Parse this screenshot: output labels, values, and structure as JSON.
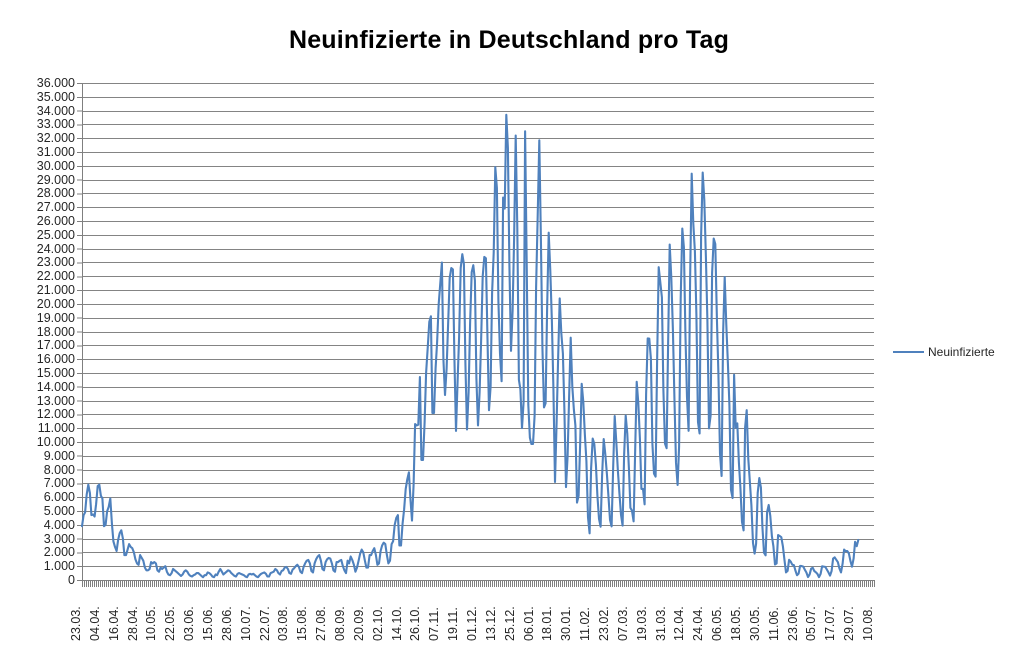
{
  "title": "Neuinfizierte in Deutschland pro Tag",
  "legend": {
    "label": "Neuinfizierte"
  },
  "colors": {
    "series": "#4F81BD",
    "gridline": "#848484",
    "axis": "#7f7f7f",
    "labels": "#262626",
    "title": "#000000",
    "background": "#FFFFFF"
  },
  "chart_data": {
    "type": "line",
    "title": "Neuinfizierte in Deutschland pro Tag",
    "series_name": "Neuinfizierte",
    "ylim": [
      0,
      36000
    ],
    "y_tick_step": 1000,
    "grid": "horizontal",
    "legend_position": "right",
    "y_tick_labels": [
      "36.000",
      "35.000",
      "34.000",
      "33.000",
      "32.000",
      "31.000",
      "30.000",
      "29.000",
      "28.000",
      "27.000",
      "26.000",
      "25.000",
      "24.000",
      "23.000",
      "22.000",
      "21.000",
      "20.000",
      "19.000",
      "18.000",
      "17.000",
      "16.000",
      "15.000",
      "14.000",
      "13.000",
      "12.000",
      "11.000",
      "10.000",
      "9.000",
      "8.000",
      "7.000",
      "6.000",
      "5.000",
      "4.000",
      "3.000",
      "2.000",
      "1.000",
      "0"
    ],
    "x_tick_labels": [
      "23.03.",
      "04.04.",
      "16.04.",
      "28.04.",
      "10.05.",
      "22.05.",
      "03.06.",
      "15.06.",
      "28.06.",
      "10.07.",
      "22.07.",
      "03.08.",
      "15.08.",
      "27.08.",
      "08.09.",
      "20.09.",
      "02.10.",
      "14.10.",
      "26.10.",
      "07.11.",
      "19.11.",
      "01.12.",
      "13.12.",
      "25.12.",
      "06.01.",
      "18.01.",
      "30.01.",
      "11.02.",
      "23.02.",
      "07.03.",
      "19.03.",
      "31.03.",
      "12.04.",
      "24.04.",
      "06.05.",
      "18.05.",
      "30.05.",
      "11.06.",
      "23.06.",
      "05.07.",
      "17.07.",
      "29.07.",
      "10.08."
    ],
    "x_label_every_n_points": 12,
    "categories_total": 505,
    "values": [
      3900,
      4700,
      4900,
      6200,
      6900,
      6300,
      4700,
      4750,
      4600,
      5500,
      6800,
      6900,
      6100,
      5900,
      3900,
      4000,
      4970,
      5300,
      5900,
      4100,
      2800,
      2400,
      2100,
      2900,
      3400,
      3600,
      3000,
      1800,
      1800,
      2200,
      2600,
      2400,
      2300,
      2000,
      1500,
      1200,
      1100,
      1800,
      1600,
      1400,
      900,
      700,
      700,
      800,
      1300,
      1200,
      1300,
      1200,
      700,
      600,
      900,
      800,
      900,
      1000,
      600,
      400,
      350,
      500,
      800,
      700,
      600,
      500,
      400,
      300,
      400,
      600,
      700,
      600,
      400,
      300,
      250,
      350,
      400,
      500,
      500,
      400,
      300,
      200,
      350,
      350,
      550,
      500,
      400,
      250,
      200,
      400,
      350,
      600,
      800,
      600,
      400,
      500,
      600,
      700,
      650,
      500,
      400,
      300,
      250,
      450,
      500,
      450,
      400,
      350,
      250,
      200,
      400,
      450,
      400,
      450,
      350,
      250,
      200,
      350,
      450,
      500,
      550,
      450,
      250,
      250,
      500,
      550,
      600,
      800,
      700,
      500,
      400,
      650,
      700,
      900,
      950,
      800,
      500,
      450,
      750,
      850,
      1000,
      1100,
      950,
      600,
      500,
      950,
      1200,
      1400,
      1450,
      1200,
      650,
      550,
      1200,
      1500,
      1700,
      1800,
      1400,
      800,
      700,
      1300,
      1500,
      1600,
      1550,
      1200,
      700,
      600,
      1300,
      1300,
      1400,
      1450,
      1000,
      700,
      500,
      1400,
      1200,
      1700,
      1450,
      1100,
      600,
      900,
      1400,
      1900,
      2200,
      2000,
      1400,
      900,
      900,
      1800,
      1800,
      2100,
      2300,
      1800,
      1100,
      1200,
      2100,
      2500,
      2700,
      2600,
      1800,
      1200,
      1400,
      2600,
      2800,
      4000,
      4500,
      4700,
      2500,
      2500,
      4100,
      5100,
      6600,
      7300,
      7800,
      5900,
      4300,
      6900,
      11300,
      11200,
      11250,
      14700,
      8700,
      8700,
      11400,
      15000,
      16800,
      18700,
      19100,
      12100,
      12100,
      15350,
      17200,
      19990,
      21500,
      23000,
      16000,
      13400,
      15300,
      18500,
      21900,
      22600,
      22500,
      16100,
      10800,
      14400,
      17600,
      22600,
      23600,
      22900,
      15700,
      10900,
      13600,
      18600,
      22300,
      22800,
      21700,
      14600,
      11200,
      13600,
      17300,
      22000,
      23400,
      23300,
      17800,
      12300,
      14000,
      20800,
      23700,
      29900,
      28400,
      20200,
      16400,
      14400,
      27700,
      26900,
      33700,
      31300,
      22800,
      16600,
      19500,
      24700,
      32200,
      25500,
      14500,
      13800,
      11000,
      12900,
      32500,
      22900,
      12700,
      10300,
      9850,
      9850,
      11900,
      21200,
      26400,
      31850,
      24700,
      16900,
      12500,
      12800,
      19600,
      25160,
      22400,
      18700,
      13900,
      7100,
      11400,
      15970,
      20400,
      17900,
      16400,
      12300,
      6730,
      8980,
      13200,
      17550,
      14020,
      12320,
      11190,
      5610,
      6100,
      9710,
      14210,
      12910,
      10490,
      8620,
      4540,
      3380,
      8070,
      10240,
      9860,
      8350,
      6110,
      4430,
      3860,
      7560,
      10210,
      9110,
      7680,
      6110,
      4370,
      3880,
      8000,
      11870,
      10000,
      7890,
      6300,
      4730,
      3940,
      9020,
      11910,
      10580,
      8100,
      5230,
      5010,
      4250,
      9150,
      14360,
      12830,
      10250,
      6600,
      6600,
      5480,
      13440,
      17500,
      17480,
      16030,
      9870,
      7710,
      7490,
      15810,
      22660,
      21570,
      20470,
      13730,
      9870,
      9550,
      17050,
      24300,
      21890,
      18130,
      13250,
      8500,
      6890,
      9680,
      20410,
      25460,
      24100,
      17860,
      13250,
      10810,
      21690,
      29430,
      25830,
      23800,
      19190,
      11440,
      10610,
      24880,
      29520,
      27540,
      23390,
      18770,
      10980,
      11910,
      22230,
      24740,
      24330,
      18940,
      14940,
      9160,
      7530,
      17860,
      21950,
      18490,
      15690,
      12660,
      6530,
      5940,
      14860,
      11040,
      11340,
      8500,
      6700,
      4210,
      3590,
      11040,
      12300,
      8770,
      7080,
      5410,
      2680,
      1910,
      2630,
      6310,
      7380,
      6710,
      3850,
      1980,
      1790,
      4920,
      5430,
      4640,
      3170,
      2440,
      1120,
      1200,
      3250,
      3190,
      3100,
      2440,
      1490,
      550,
      660,
      1460,
      1330,
      1110,
      1080,
      690,
      350,
      460,
      1020,
      1010,
      970,
      730,
      540,
      220,
      400,
      810,
      890,
      650,
      560,
      440,
      210,
      440,
      990,
      970,
      950,
      750,
      560,
      320,
      650,
      1550,
      1640,
      1460,
      1290,
      840,
      550,
      1180,
      2200,
      2090,
      2090,
      1920,
      1390,
      960,
      1550,
      2770,
      2450,
      2900
    ]
  }
}
